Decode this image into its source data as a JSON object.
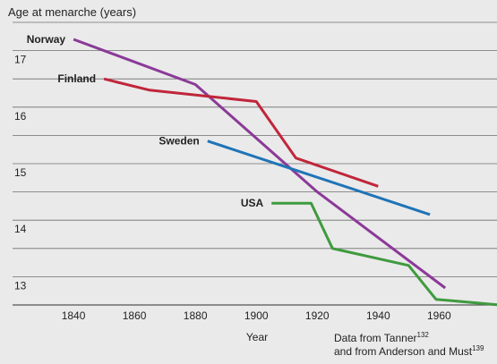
{
  "chart_data": {
    "type": "line",
    "title": "",
    "ylabel": "Age at menarche (years)",
    "xlabel": "Year",
    "xlim": [
      1820,
      1979
    ],
    "ylim": [
      12.5,
      17.5
    ],
    "x_ticks": [
      1840,
      1860,
      1880,
      1900,
      1920,
      1940,
      1960
    ],
    "y_ticks": [
      13,
      14,
      15,
      16,
      17
    ],
    "grid": "horizontal",
    "series": [
      {
        "name": "Norway",
        "color": "#8b3a98",
        "points": [
          [
            1840,
            17.2
          ],
          [
            1880,
            16.4
          ],
          [
            1920,
            14.5
          ],
          [
            1962,
            12.8
          ]
        ]
      },
      {
        "name": "Finland",
        "color": "#c0263a",
        "points": [
          [
            1850,
            16.5
          ],
          [
            1865,
            16.3
          ],
          [
            1900,
            16.1
          ],
          [
            1913,
            15.1
          ],
          [
            1940,
            14.6
          ]
        ]
      },
      {
        "name": "Sweden",
        "color": "#1f74b7",
        "points": [
          [
            1884,
            15.4
          ],
          [
            1957,
            14.1
          ]
        ]
      },
      {
        "name": "USA",
        "color": "#3f9a3f",
        "points": [
          [
            1905,
            14.3
          ],
          [
            1918,
            14.3
          ],
          [
            1925,
            13.5
          ],
          [
            1950,
            13.2
          ],
          [
            1959,
            12.6
          ],
          [
            1980,
            12.5
          ]
        ]
      }
    ],
    "source_note": {
      "line1": "Data from Tanner",
      "ref1": "132",
      "line2": "and from Anderson and Must",
      "ref2": "139"
    }
  }
}
